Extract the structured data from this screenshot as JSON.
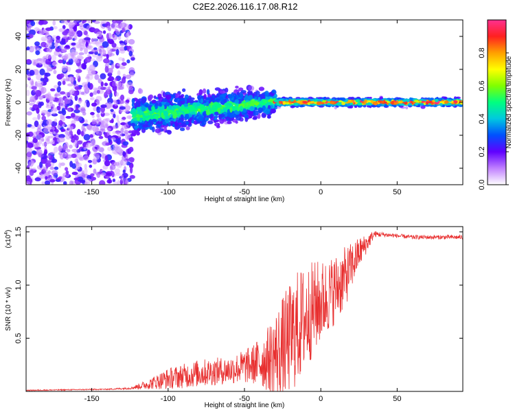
{
  "title": "C2E2.2026.116.17.08.R12",
  "colors": {
    "signal": "#e83030",
    "background": "#ffffff"
  },
  "chart_data": [
    {
      "type": "heatmap",
      "title": "C2E2.2026.116.17.08.R12",
      "xlabel": "Height of straight line (km)",
      "ylabel": "Frequency (Hz)",
      "xlim": [
        -193,
        93
      ],
      "ylim": [
        -50,
        50
      ],
      "x_ticks": [
        -150,
        -100,
        -50,
        0,
        50
      ],
      "x_tick_labels": [
        "-150",
        "-100",
        "-50",
        "0",
        "50"
      ],
      "y_ticks": [
        -40,
        -20,
        0,
        20,
        40
      ],
      "y_tick_labels": [
        "-40",
        "-20",
        "0",
        "20",
        "40"
      ],
      "colorbar": {
        "label": "Normalized spectral amplitude",
        "range": [
          0,
          1
        ],
        "ticks": [
          0,
          0.2,
          0.4,
          0.6,
          0.8
        ],
        "tick_labels": [
          "0.0",
          "0.2",
          "0.4",
          "0.6",
          "0.8"
        ],
        "stops": [
          {
            "v": 0.0,
            "color": "#ffffff"
          },
          {
            "v": 0.1,
            "color": "#c080ff"
          },
          {
            "v": 0.2,
            "color": "#6000ff"
          },
          {
            "v": 0.3,
            "color": "#0050ff"
          },
          {
            "v": 0.4,
            "color": "#00c8e0"
          },
          {
            "v": 0.5,
            "color": "#00ff80"
          },
          {
            "v": 0.6,
            "color": "#80ff00"
          },
          {
            "v": 0.7,
            "color": "#ffff00"
          },
          {
            "v": 0.8,
            "color": "#ffa000"
          },
          {
            "v": 0.9,
            "color": "#ff2020"
          },
          {
            "v": 1.0,
            "color": "#ff3090"
          }
        ]
      },
      "regions": [
        {
          "name": "noise",
          "x_range": [
            -193,
            -123
          ],
          "y_range": [
            -50,
            50
          ],
          "amplitude": 0.15
        },
        {
          "name": "transition",
          "x_range": [
            -123,
            -30
          ],
          "freq_center_start": -8,
          "freq_center_end": 0,
          "spread": 10,
          "amplitude": 0.3
        },
        {
          "name": "converged",
          "x_range": [
            -30,
            93
          ],
          "freq_center": 0,
          "spread": 2,
          "amplitude": 0.55
        }
      ]
    },
    {
      "type": "line",
      "xlabel": "Height of straight line (km)",
      "ylabel": "SNR (10 * v/v)",
      "y_exponent_label": "(x10",
      "y_exponent_power": "4",
      "xlim": [
        -193,
        93
      ],
      "ylim": [
        0,
        1.55
      ],
      "x_ticks": [
        -150,
        -100,
        -50,
        0,
        50
      ],
      "x_tick_labels": [
        "-150",
        "-100",
        "-50",
        "0",
        "50"
      ],
      "y_ticks": [
        0.5,
        1.0,
        1.5
      ],
      "y_tick_labels": [
        "0.5",
        "1.0",
        "1.5"
      ],
      "series": [
        {
          "name": "SNR",
          "color": "#e83030",
          "envelope_x": [
            -193,
            -140,
            -125,
            -115,
            -100,
            -80,
            -60,
            -45,
            -35,
            -25,
            -15,
            -5,
            5,
            15,
            25,
            35,
            45,
            60,
            93
          ],
          "envelope_mean": [
            0.01,
            0.02,
            0.03,
            0.06,
            0.12,
            0.17,
            0.2,
            0.25,
            0.3,
            0.4,
            0.6,
            0.78,
            0.9,
            1.05,
            1.3,
            1.48,
            1.47,
            1.45,
            1.45
          ],
          "envelope_amp": [
            0.005,
            0.005,
            0.01,
            0.04,
            0.1,
            0.13,
            0.13,
            0.18,
            0.3,
            0.5,
            0.55,
            0.45,
            0.35,
            0.3,
            0.15,
            0.03,
            0.02,
            0.02,
            0.02
          ]
        }
      ]
    }
  ]
}
